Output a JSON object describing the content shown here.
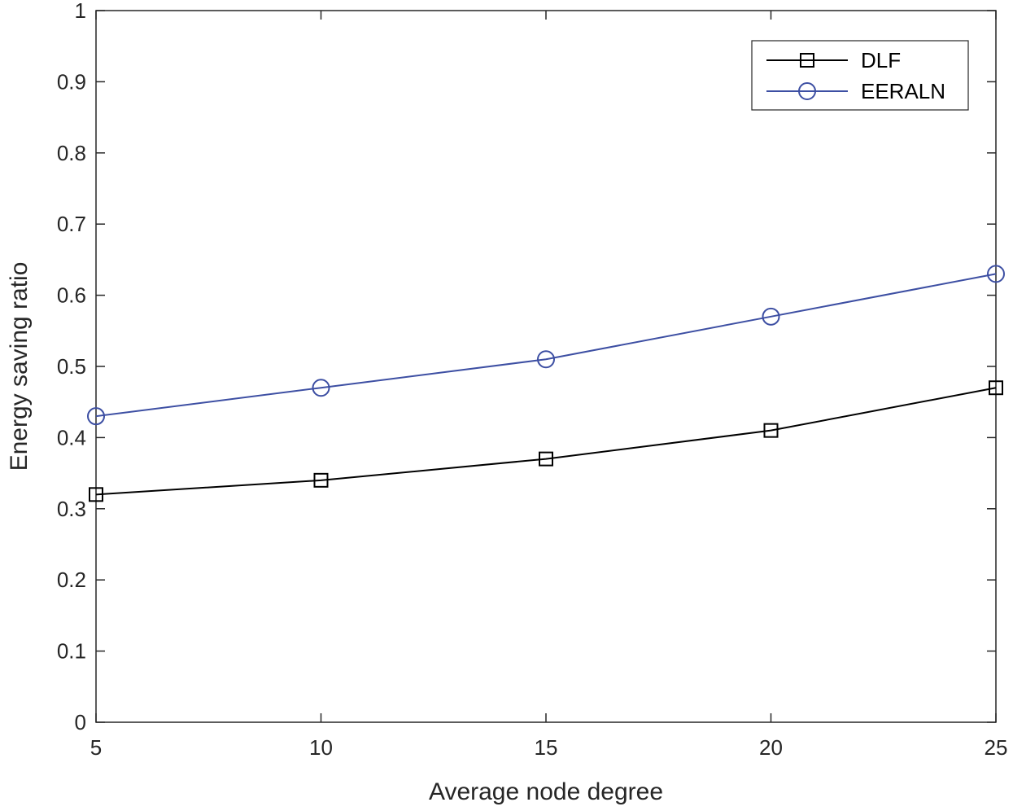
{
  "chart_data": {
    "type": "line",
    "title": "",
    "xlabel": "Average node degree",
    "ylabel": "Energy saving ratio",
    "xlim": [
      5,
      25
    ],
    "ylim": [
      0,
      1
    ],
    "xticks": [
      5,
      10,
      15,
      20,
      25
    ],
    "xtick_labels": [
      "5",
      "10",
      "15",
      "20",
      "25"
    ],
    "yticks": [
      0,
      0.1,
      0.2,
      0.3,
      0.4,
      0.5,
      0.6,
      0.7,
      0.8,
      0.9,
      1
    ],
    "ytick_labels": [
      "0",
      "0.1",
      "0.2",
      "0.3",
      "0.4",
      "0.5",
      "0.6",
      "0.7",
      "0.8",
      "0.9",
      "1"
    ],
    "grid": false,
    "legend_position": "top-right",
    "x": [
      5,
      10,
      15,
      20,
      25
    ],
    "series": [
      {
        "name": "DLF",
        "values": [
          0.32,
          0.34,
          0.37,
          0.41,
          0.47
        ],
        "color": "#000000",
        "marker": "square"
      },
      {
        "name": "EERALN",
        "values": [
          0.43,
          0.47,
          0.51,
          0.57,
          0.63
        ],
        "color": "#3d4fa3",
        "marker": "circle"
      }
    ]
  }
}
